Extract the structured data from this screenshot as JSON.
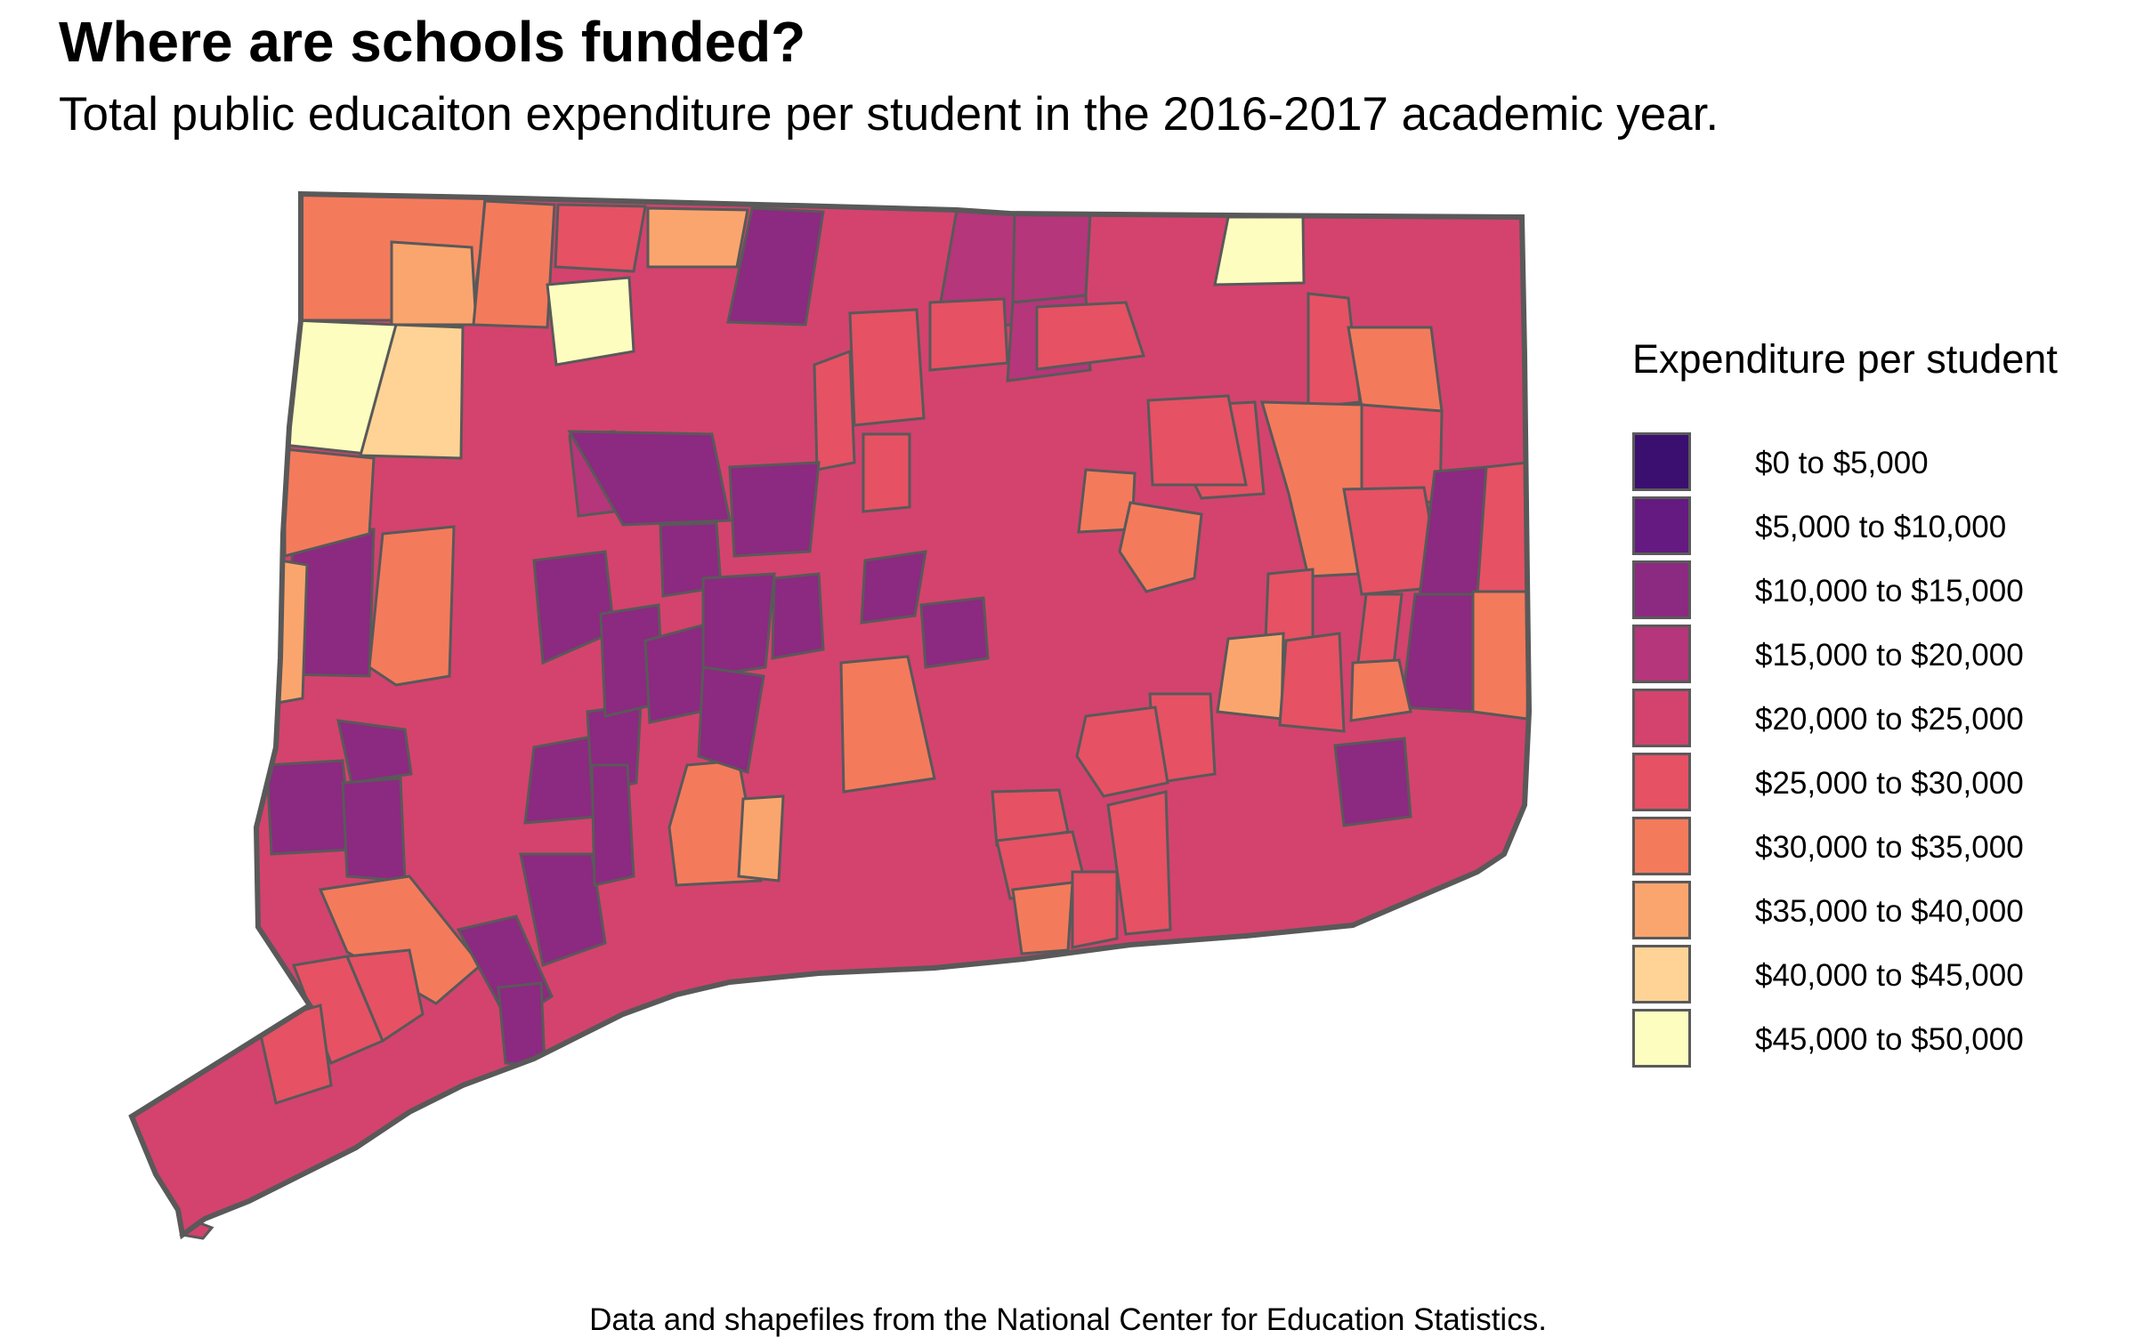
{
  "title": "Where are schools funded?",
  "subtitle": "Total public educaiton expenditure per student in the 2016-2017 academic year.",
  "caption": "Data and shapefiles from the National Center for Education Statistics.",
  "legend": {
    "title": "Expenditure per student",
    "items": [
      {
        "label": "$0 to $5,000",
        "color": "#3b0f70"
      },
      {
        "label": "$5,000 to $10,000",
        "color": "#641a80"
      },
      {
        "label": "$10,000 to $15,000",
        "color": "#8c2981"
      },
      {
        "label": "$15,000 to $20,000",
        "color": "#b5367a"
      },
      {
        "label": "$20,000 to $25,000",
        "color": "#d3436e"
      },
      {
        "label": "$25,000 to $30,000",
        "color": "#e65164"
      },
      {
        "label": "$30,000 to $35,000",
        "color": "#f47a5c"
      },
      {
        "label": "$35,000 to $40,000",
        "color": "#fba56e"
      },
      {
        "label": "$40,000 to $45,000",
        "color": "#fed395"
      },
      {
        "label": "$45,000 to $50,000",
        "color": "#fcfdbf"
      }
    ]
  },
  "map": {
    "border_color": "#595959",
    "base_color": "#d3436e"
  }
}
